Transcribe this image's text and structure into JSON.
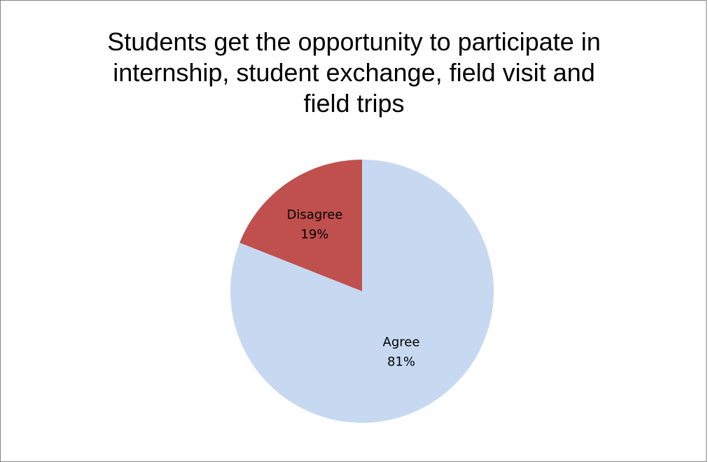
{
  "chart_data": {
    "type": "pie",
    "title_lines": [
      "Students get the opportunity to participate in",
      "internship, student exchange, field visit and",
      "field trips"
    ],
    "slices": [
      {
        "label": "Agree",
        "value": 81,
        "display": "81%",
        "color": "#c6d9f1"
      },
      {
        "label": "Disagree",
        "value": 19,
        "display": "19%",
        "color": "#c0504d"
      }
    ],
    "start_angle_deg": 0,
    "direction": "clockwise",
    "legend": "none",
    "data_labels": "inside"
  }
}
